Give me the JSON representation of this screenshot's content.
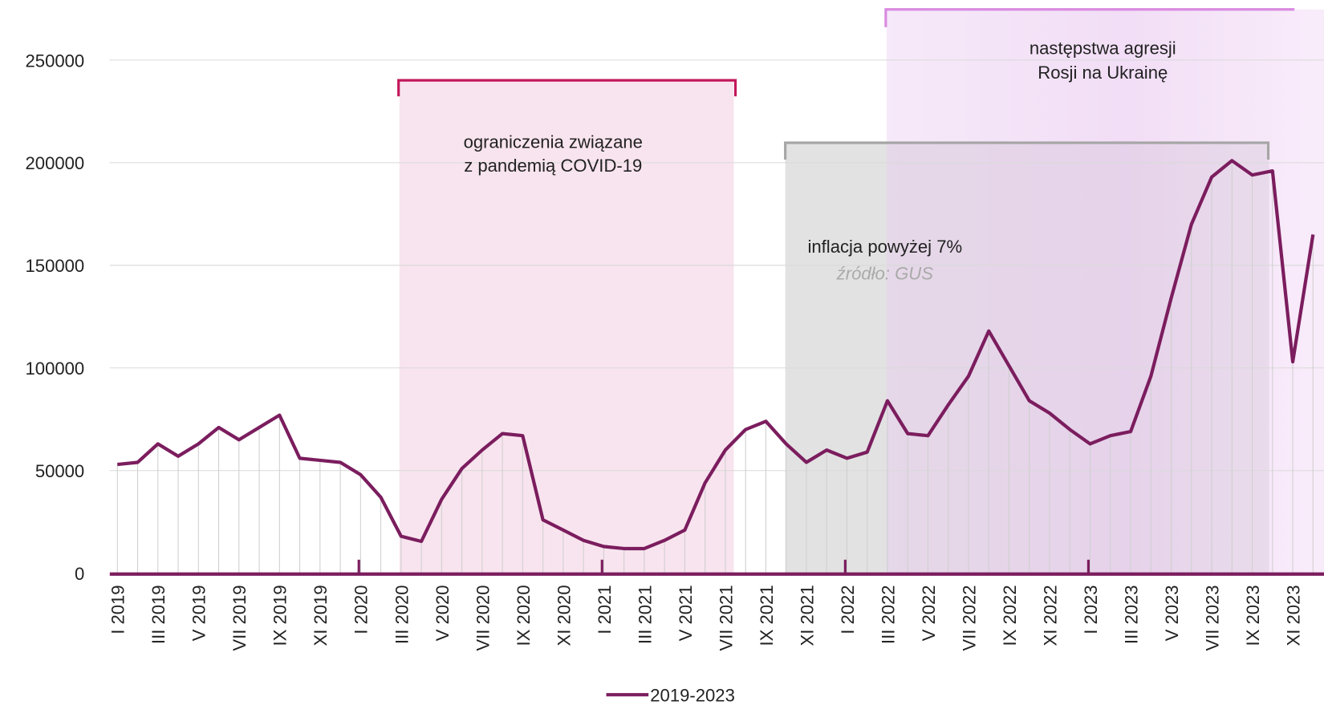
{
  "chart_data": {
    "type": "line",
    "categories": [
      "I 2019",
      null,
      "III 2019",
      null,
      "V 2019",
      null,
      "VII 2019",
      null,
      "IX 2019",
      null,
      "XI 2019",
      null,
      "I 2020",
      null,
      "III 2020",
      null,
      "V 2020",
      null,
      "VII 2020",
      null,
      "IX 2020",
      null,
      "XI 2020",
      null,
      "I 2021",
      null,
      "III 2021",
      null,
      "V 2021",
      null,
      "VII 2021",
      null,
      "IX 2021",
      null,
      "XI 2021",
      null,
      "I 2022",
      null,
      "III 2022",
      null,
      "V 2022",
      null,
      "VII 2022",
      null,
      "IX 2022",
      null,
      "XI 2022",
      null,
      "I 2023",
      null,
      "III 2023",
      null,
      "V 2023",
      null,
      "VII 2023",
      null,
      "IX 2023",
      null,
      "XI 2023",
      null
    ],
    "series": [
      {
        "name": "2019-2023",
        "color": "#7b1d5e",
        "values": [
          53000,
          54000,
          63000,
          57000,
          63000,
          71000,
          65000,
          71000,
          77000,
          56000,
          55000,
          54000,
          48000,
          37000,
          18000,
          15500,
          36000,
          51000,
          60000,
          68000,
          67000,
          26000,
          21000,
          16000,
          13000,
          12000,
          12000,
          16000,
          21000,
          44000,
          60000,
          70000,
          74000,
          63000,
          54000,
          60000,
          56000,
          59000,
          84000,
          68000,
          67000,
          82000,
          96000,
          118000,
          101000,
          84000,
          78000,
          70000,
          63000,
          67000,
          69000,
          96000,
          134000,
          170000,
          193000,
          201000,
          194000,
          196000,
          103000,
          165000
        ]
      }
    ],
    "ylim": [
      0,
      250000
    ],
    "yticks": [
      0,
      50000,
      100000,
      150000,
      200000,
      250000
    ],
    "grid": true,
    "annotations": [
      "ograniczenia związane z pandemią COVID-19",
      "inflacja powyżej 7%",
      "następstwa agresji Rosji na Ukrainę"
    ],
    "source": "źródło: GUS"
  }
}
